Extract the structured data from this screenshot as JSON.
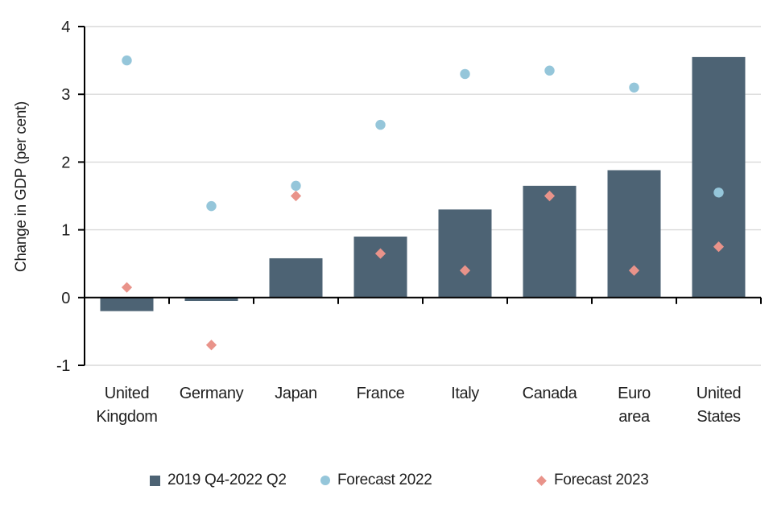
{
  "chart_data": {
    "type": "bar",
    "title": "",
    "xlabel": "",
    "ylabel": "Change in GDP (per cent)",
    "ylim": [
      -1,
      4
    ],
    "yticks": [
      4,
      3,
      2,
      1,
      0,
      -1
    ],
    "grid": "horizontal-light-gray",
    "legend_position": "bottom",
    "categories": [
      "United Kingdom",
      "Germany",
      "Japan",
      "France",
      "Italy",
      "Canada",
      "Euro area",
      "United States"
    ],
    "series": [
      {
        "name": "2019 Q4-2022 Q2",
        "type": "bar",
        "marker": "square",
        "color": "#4D6374",
        "values": [
          -0.2,
          -0.05,
          0.58,
          0.9,
          1.3,
          1.65,
          1.88,
          3.55
        ]
      },
      {
        "name": "Forecast 2022",
        "type": "scatter",
        "marker": "circle",
        "color": "#95C6DA",
        "values": [
          3.5,
          1.35,
          1.65,
          2.55,
          3.3,
          3.35,
          3.1,
          1.55
        ]
      },
      {
        "name": "Forecast 2023",
        "type": "scatter",
        "marker": "diamond",
        "color": "#E9938A",
        "values": [
          0.15,
          -0.7,
          1.5,
          0.65,
          0.4,
          1.5,
          0.4,
          0.75
        ]
      }
    ],
    "colors": {
      "gridline": "#D9D9D9",
      "axis": "#000000",
      "text": "#1F1F1F"
    }
  }
}
